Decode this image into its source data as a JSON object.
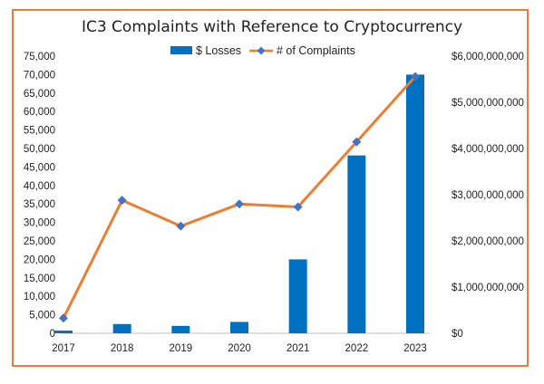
{
  "chart_data": {
    "type": "bar+line",
    "title": "IC3 Complaints with Reference to Cryptocurrency",
    "categories": [
      "2017",
      "2018",
      "2019",
      "2020",
      "2021",
      "2022",
      "2023"
    ],
    "series": [
      {
        "name": "$ Losses",
        "type": "bar",
        "axis": "right",
        "color": "#0070c0",
        "values": [
          58000000,
          200000000,
          160000000,
          246000000,
          1600000000,
          3850000000,
          5600000000
        ]
      },
      {
        "name": "# of Complaints",
        "type": "line",
        "axis": "left",
        "color": "#ed7d31",
        "marker_color": "#4472c4",
        "values": [
          4100,
          36000,
          29000,
          35000,
          34200,
          51800,
          69500
        ]
      }
    ],
    "y_left": {
      "min": 0,
      "max": 75000,
      "ticks": [
        "0",
        "5,000",
        "10,000",
        "15,000",
        "20,000",
        "25,000",
        "30,000",
        "35,000",
        "40,000",
        "45,000",
        "50,000",
        "55,000",
        "60,000",
        "65,000",
        "70,000",
        "75,000"
      ]
    },
    "y_right": {
      "min": 0,
      "max": 6000000000,
      "ticks": [
        "$0",
        "$1,000,000,000",
        "$2,000,000,000",
        "$3,000,000,000",
        "$4,000,000,000",
        "$5,000,000,000",
        "$6,000,000,000"
      ]
    },
    "legend": {
      "position": "top",
      "entries": [
        "$ Losses",
        "# of Complaints"
      ]
    },
    "grid": false
  }
}
